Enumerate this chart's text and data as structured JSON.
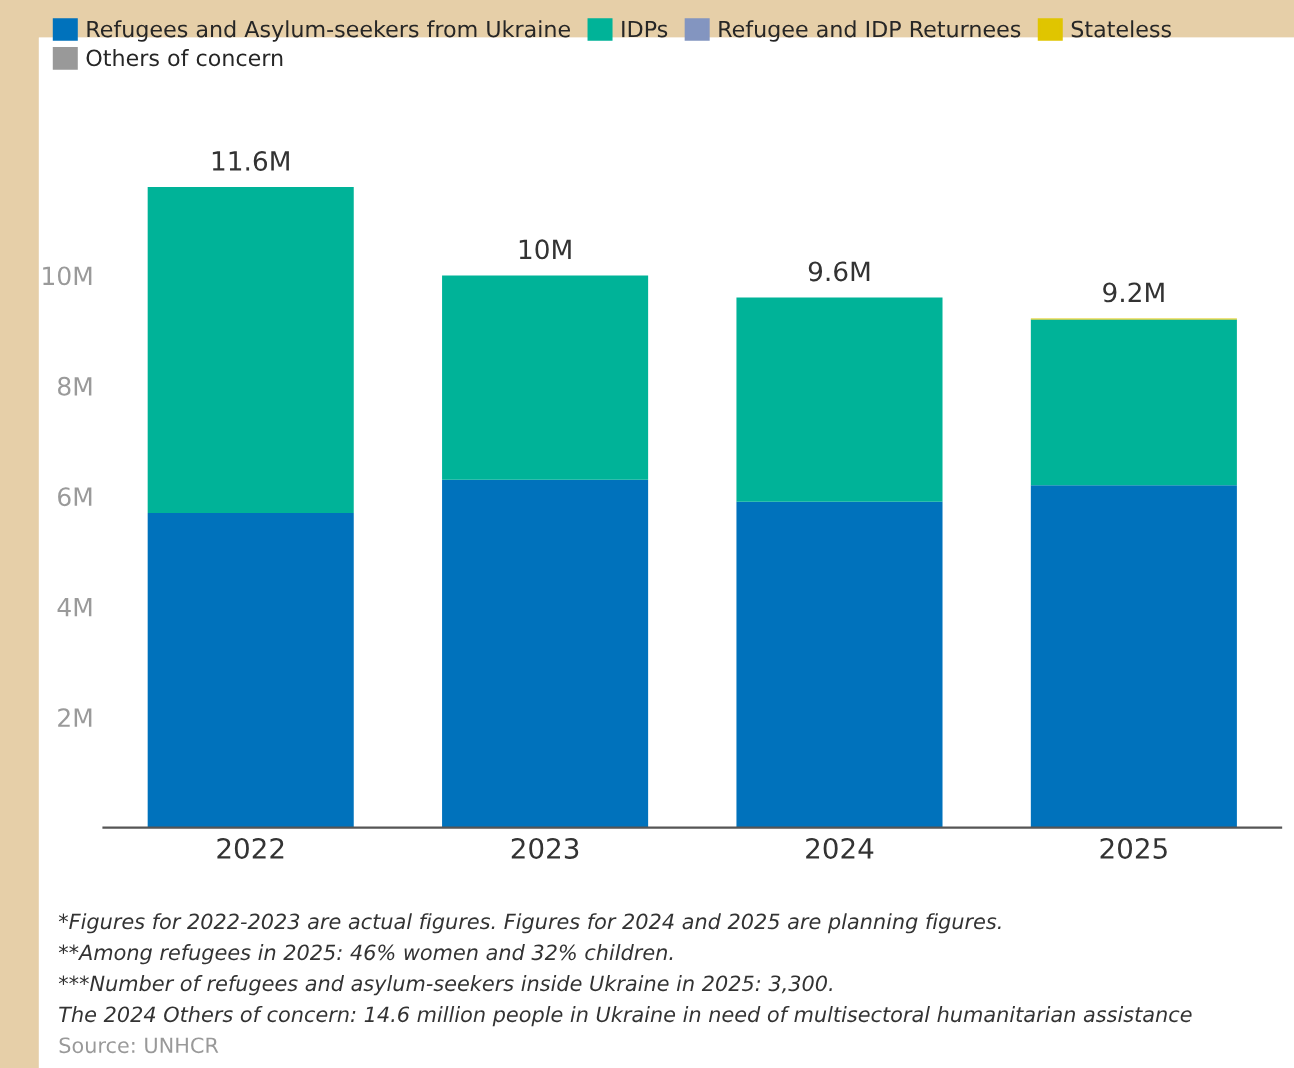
{
  "chart_data": {
    "type": "bar",
    "stacked": true,
    "categories": [
      "2022",
      "2023",
      "2024",
      "2025"
    ],
    "series": [
      {
        "name": "Refugees and Asylum-seekers from Ukraine",
        "color": "#0072bc",
        "values": [
          5.7,
          6.3,
          5.9,
          6.2
        ]
      },
      {
        "name": "IDPs",
        "color": "#00b398",
        "values": [
          5.9,
          3.7,
          3.7,
          3.0
        ]
      },
      {
        "name": "Refugee and IDP Returnees",
        "color": "#8395c0",
        "values": [
          null,
          null,
          null,
          null
        ]
      },
      {
        "name": "Stateless",
        "color": "#e0c500",
        "values": [
          null,
          null,
          null,
          0.02
        ]
      },
      {
        "name": "Others of concern",
        "color": "#999999",
        "values": [
          null,
          null,
          null,
          null
        ]
      }
    ],
    "totals": [
      "11.6M",
      "10M",
      "9.6M",
      "9.2M"
    ],
    "ylim": [
      0,
      11.7
    ],
    "yticks": [
      {
        "value": 2,
        "label": "2M"
      },
      {
        "value": 4,
        "label": "4M"
      },
      {
        "value": 6,
        "label": "6M"
      },
      {
        "value": 8,
        "label": "8M"
      },
      {
        "value": 10,
        "label": "10M"
      }
    ],
    "grid": false,
    "legend": "top left",
    "annotations": [
      "*Figures for 2022-2023 are actual figures. Figures for 2024 and 2025 are planning figures.",
      "**Among refugees in 2025: 46% women and 32% children.",
      "***Number of refugees and asylum-seekers inside Ukraine in 2025: 3,300.",
      "The 2024 Others of concern: 14.6 million people in Ukraine in need of multisectoral humanitarian assistance",
      "Source: UNHCR"
    ]
  }
}
